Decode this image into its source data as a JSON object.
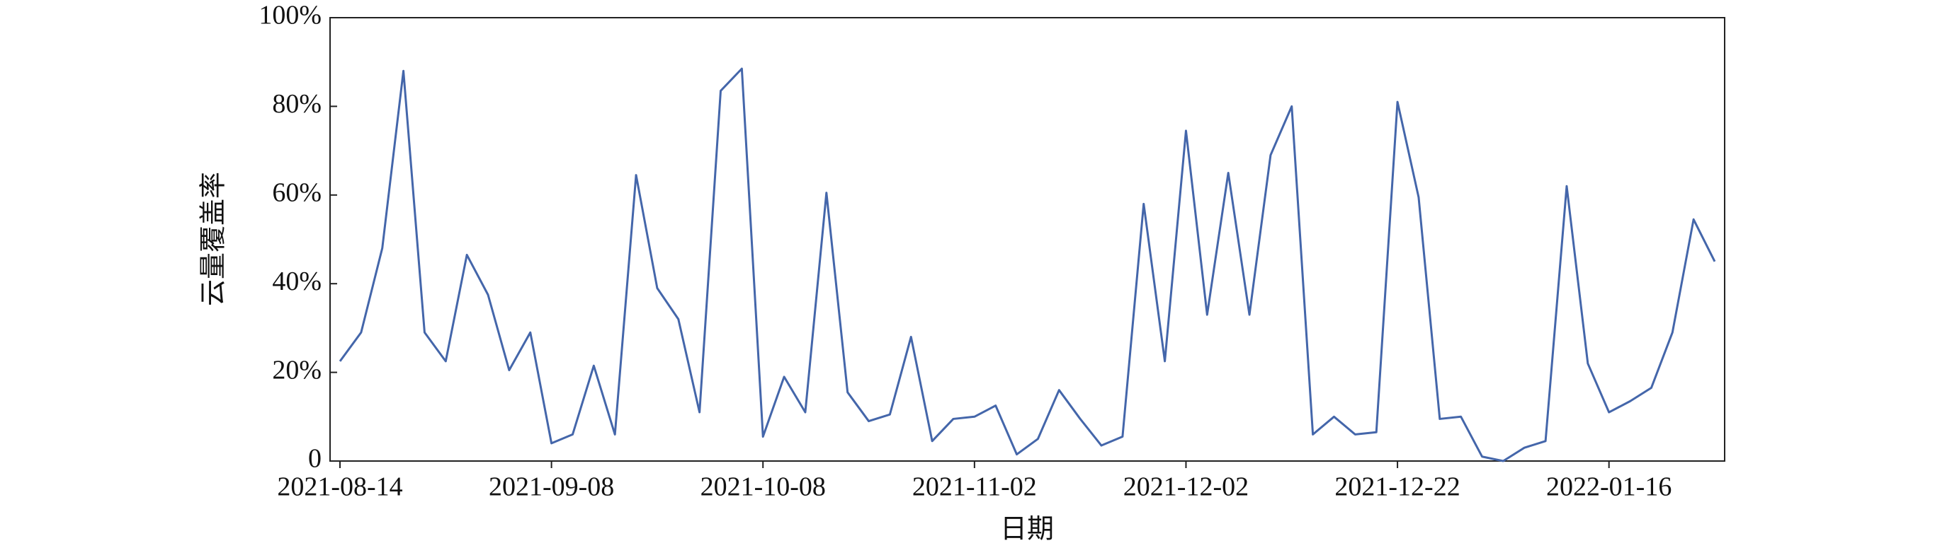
{
  "chart_data": {
    "type": "line",
    "x_label": "日期",
    "y_label": "云量覆盖率",
    "categories": [
      "2021-08-14",
      null,
      null,
      null,
      null,
      null,
      null,
      null,
      null,
      null,
      "2021-09-08",
      null,
      null,
      null,
      null,
      null,
      null,
      null,
      null,
      null,
      "2021-10-08",
      null,
      null,
      null,
      null,
      null,
      null,
      null,
      null,
      null,
      "2021-11-02",
      null,
      null,
      null,
      null,
      null,
      null,
      null,
      null,
      null,
      "2021-12-02",
      null,
      null,
      null,
      null,
      null,
      null,
      null,
      null,
      null,
      "2021-12-22",
      null,
      null,
      null,
      null,
      null,
      null,
      null,
      null,
      null,
      "2022-01-16",
      null,
      null,
      null,
      null,
      null
    ],
    "series": [
      {
        "name": "云量覆盖率",
        "color": "#4466aa",
        "values": [
          22.5,
          29,
          48,
          88,
          29,
          22.5,
          46.5,
          37.5,
          20.5,
          29,
          4,
          6,
          21.5,
          6,
          64.5,
          39,
          32,
          11,
          83.5,
          88.5,
          5.5,
          19,
          11,
          60.5,
          15.5,
          9,
          10.5,
          28,
          4.5,
          9.5,
          10,
          12.5,
          1.5,
          5,
          16,
          9.5,
          3.5,
          5.5,
          58,
          22.5,
          74.5,
          33,
          65,
          33,
          69,
          80,
          6,
          10,
          6,
          6.5,
          81,
          59.5,
          9.5,
          10,
          1,
          0,
          3,
          4.5,
          62,
          22,
          11,
          13.5,
          16.5,
          29,
          54.5,
          45
        ]
      }
    ],
    "ylim": [
      0,
      100
    ],
    "yticks": [
      0,
      {
        "value": 20,
        "label": "20%"
      },
      {
        "value": 40,
        "label": "40%"
      },
      {
        "value": 60,
        "label": "60%"
      },
      {
        "value": 80,
        "label": "80%"
      },
      {
        "value": 100,
        "label": "100%"
      }
    ],
    "grid": false
  }
}
